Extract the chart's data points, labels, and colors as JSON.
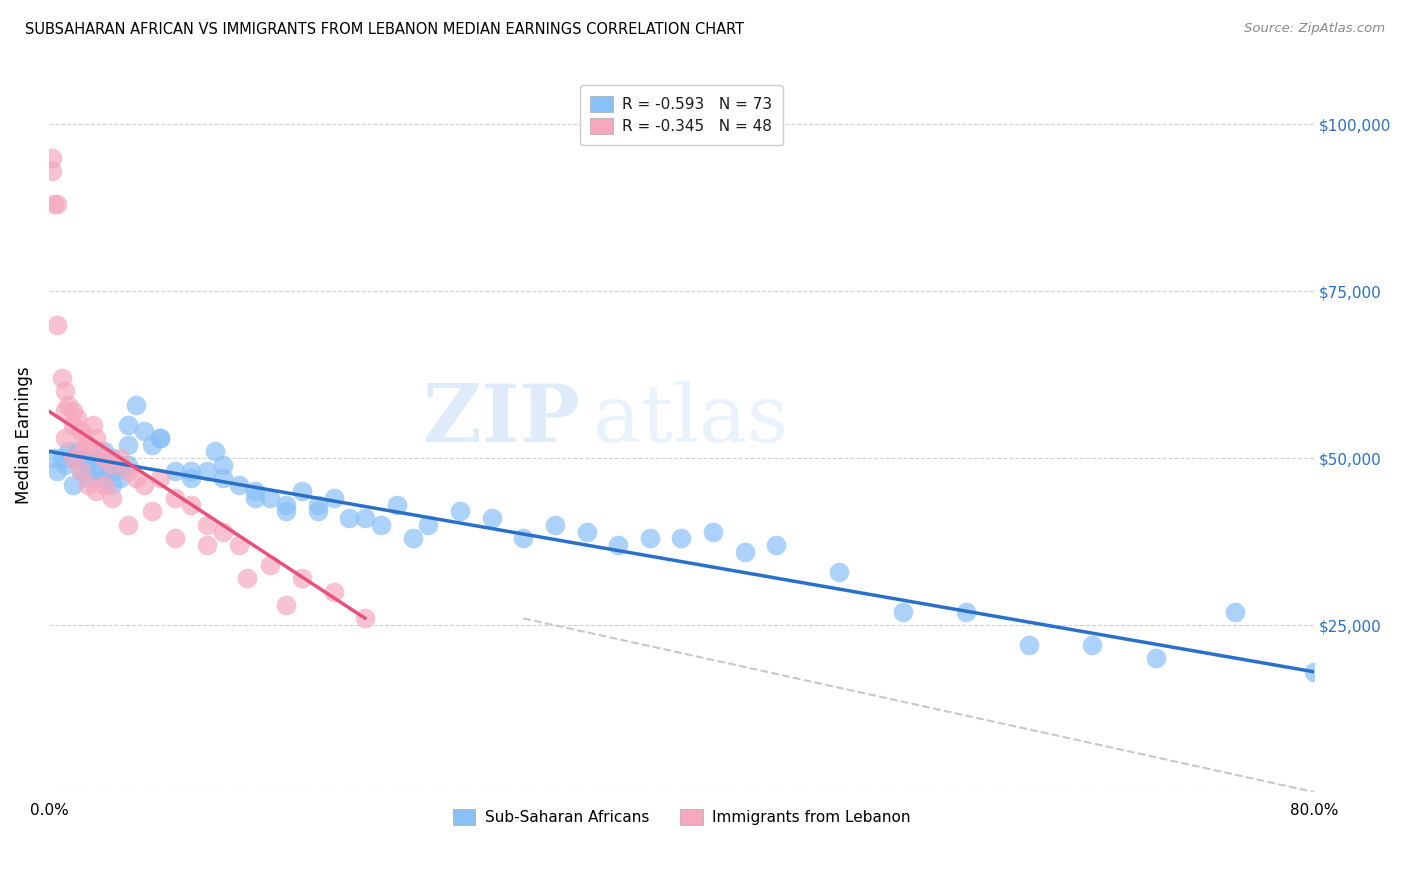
{
  "title": "SUBSAHARAN AFRICAN VS IMMIGRANTS FROM LEBANON MEDIAN EARNINGS CORRELATION CHART",
  "source": "Source: ZipAtlas.com",
  "ylabel": "Median Earnings",
  "legend_blue_label": "R = -0.593   N = 73",
  "legend_pink_label": "R = -0.345   N = 48",
  "legend_bottom_blue": "Sub-Saharan Africans",
  "legend_bottom_pink": "Immigrants from Lebanon",
  "blue_scatter_x": [
    0.3,
    0.5,
    0.8,
    1.0,
    1.2,
    1.5,
    1.5,
    1.8,
    2.0,
    2.2,
    2.5,
    2.5,
    2.8,
    3.0,
    3.2,
    3.5,
    3.5,
    3.8,
    4.0,
    4.0,
    4.2,
    4.5,
    4.5,
    5.0,
    5.0,
    5.5,
    6.0,
    6.5,
    7.0,
    8.0,
    9.0,
    10.0,
    10.5,
    11.0,
    12.0,
    13.0,
    14.0,
    15.0,
    16.0,
    17.0,
    18.0,
    20.0,
    22.0,
    24.0,
    26.0,
    28.0,
    30.0,
    32.0,
    34.0,
    36.0,
    38.0,
    40.0,
    42.0,
    44.0,
    46.0,
    50.0,
    54.0,
    58.0,
    62.0,
    66.0,
    70.0,
    75.0,
    80.0,
    5.0,
    7.0,
    9.0,
    11.0,
    13.0,
    15.0,
    17.0,
    19.0,
    21.0,
    23.0
  ],
  "blue_scatter_y": [
    50000,
    48000,
    50000,
    49000,
    51000,
    50000,
    46000,
    51000,
    48000,
    50000,
    49000,
    47000,
    50000,
    48000,
    49000,
    47000,
    51000,
    48000,
    50000,
    46000,
    48000,
    49000,
    47000,
    55000,
    52000,
    58000,
    54000,
    52000,
    53000,
    48000,
    47000,
    48000,
    51000,
    47000,
    46000,
    45000,
    44000,
    42000,
    45000,
    43000,
    44000,
    41000,
    43000,
    40000,
    42000,
    41000,
    38000,
    40000,
    39000,
    37000,
    38000,
    38000,
    39000,
    36000,
    37000,
    33000,
    27000,
    27000,
    22000,
    22000,
    20000,
    27000,
    18000,
    49000,
    53000,
    48000,
    49000,
    44000,
    43000,
    42000,
    41000,
    40000,
    38000
  ],
  "pink_scatter_x": [
    0.2,
    0.2,
    0.3,
    0.5,
    0.5,
    0.8,
    1.0,
    1.0,
    1.2,
    1.5,
    1.5,
    1.8,
    2.0,
    2.0,
    2.2,
    2.5,
    2.8,
    3.0,
    3.2,
    3.5,
    4.0,
    4.5,
    5.0,
    5.5,
    6.0,
    7.0,
    8.0,
    9.0,
    10.0,
    11.0,
    12.0,
    14.0,
    16.0,
    18.0,
    20.0,
    1.0,
    1.5,
    2.0,
    2.5,
    3.0,
    3.5,
    4.0,
    5.0,
    6.5,
    8.0,
    10.0,
    12.5,
    15.0
  ],
  "pink_scatter_y": [
    95000,
    93000,
    88000,
    88000,
    70000,
    62000,
    60000,
    57000,
    58000,
    57000,
    55000,
    56000,
    54000,
    51000,
    53000,
    52000,
    55000,
    53000,
    51000,
    50000,
    49000,
    50000,
    48000,
    47000,
    46000,
    47000,
    44000,
    43000,
    40000,
    39000,
    37000,
    34000,
    32000,
    30000,
    26000,
    53000,
    50000,
    48000,
    46000,
    45000,
    46000,
    44000,
    40000,
    42000,
    38000,
    37000,
    32000,
    28000
  ],
  "blue_line_x": [
    0,
    80
  ],
  "blue_line_y": [
    51000,
    18000
  ],
  "pink_line_x": [
    0,
    20
  ],
  "pink_line_y": [
    57000,
    26000
  ],
  "dashed_line_x": [
    30,
    80
  ],
  "dashed_line_y": [
    26000,
    0
  ],
  "watermark_zip": "ZIP",
  "watermark_atlas": "atlas",
  "blue_color": "#89c0f7",
  "pink_color": "#f5a8be",
  "blue_line_color": "#2970c8",
  "pink_line_color": "#e8527a",
  "dashed_line_color": "#c8c8c8",
  "right_axis_color": "#2970c8",
  "background_color": "#ffffff",
  "xlim": [
    0,
    80
  ],
  "ylim": [
    0,
    107000
  ],
  "y_ticks": [
    0,
    25000,
    50000,
    75000,
    100000
  ],
  "y_tick_labels_right": [
    "",
    "$25,000",
    "$50,000",
    "$75,000",
    "$100,000"
  ]
}
